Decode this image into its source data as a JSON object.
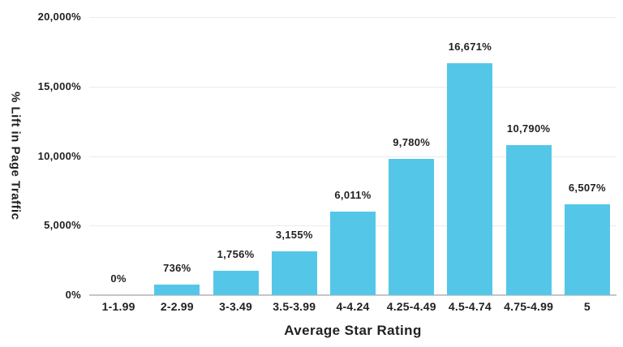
{
  "chart_data": {
    "type": "bar",
    "title": "",
    "xlabel": "Average Star Rating",
    "ylabel": "% Lift in Page Traffic",
    "categories": [
      "1-1.99",
      "2-2.99",
      "3-3.49",
      "3.5-3.99",
      "4-4.24",
      "4.25-4.49",
      "4.5-4.74",
      "4.75-4.99",
      "5"
    ],
    "values": [
      0,
      736,
      1756,
      3155,
      6011,
      9780,
      16671,
      10790,
      6507
    ],
    "value_labels": [
      "0%",
      "736%",
      "1,756%",
      "3,155%",
      "6,011%",
      "9,780%",
      "16,671%",
      "10,790%",
      "6,507%"
    ],
    "ylim": [
      0,
      20000
    ],
    "ytick_interval": 5000,
    "ytick_labels": [
      "0%",
      "5,000%",
      "10,000%",
      "15,000%",
      "20,000%"
    ],
    "grid": "horizontal",
    "legend": "none",
    "colors": {
      "bar": "#54C7E8",
      "text": "#231F20",
      "gridline": "#EBEBEB",
      "baseline": "#C6C6C6",
      "background": "#FFFFFF"
    }
  }
}
